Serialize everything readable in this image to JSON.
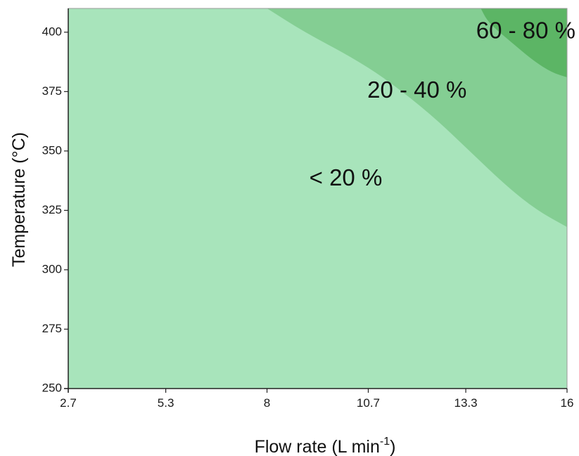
{
  "chart_data": {
    "type": "contour",
    "title": "",
    "xlabel": "Flow rate (L min",
    "xlabel_superscript": "-1",
    "xlabel_suffix": ")",
    "ylabel": "Temperature (°C)",
    "x_ticks": [
      "2.7",
      "5.3",
      "8",
      "10.7",
      "13.3",
      "16"
    ],
    "x_tick_values": [
      2.7,
      5.3,
      8,
      10.7,
      13.3,
      16
    ],
    "y_ticks": [
      "250",
      "275",
      "300",
      "325",
      "350",
      "375",
      "400"
    ],
    "y_tick_values": [
      250,
      275,
      300,
      325,
      350,
      375,
      400
    ],
    "xlim": [
      2.7,
      16
    ],
    "ylim": [
      250,
      410
    ],
    "grid": false,
    "regions": [
      {
        "label": "< 20 %",
        "color": "#a8e4bb",
        "label_x": 10.1,
        "label_y": 338
      },
      {
        "label": "20 - 40 %",
        "color": "#84ce93",
        "label_x": 12.0,
        "label_y": 375,
        "boundary": [
          [
            8.0,
            410
          ],
          [
            9.0,
            400
          ],
          [
            10.2,
            390
          ],
          [
            11.2,
            380
          ],
          [
            12.4,
            365
          ],
          [
            13.4,
            350
          ],
          [
            14.4,
            335
          ],
          [
            15.2,
            325
          ],
          [
            16.0,
            318
          ]
        ]
      },
      {
        "label": "60 - 80 %",
        "color": "#5cb565",
        "label_x": 14.9,
        "label_y": 400,
        "boundary": [
          [
            13.7,
            410
          ],
          [
            13.9,
            404
          ],
          [
            14.5,
            396
          ],
          [
            15.1,
            388
          ],
          [
            15.6,
            383
          ],
          [
            16.0,
            381
          ]
        ]
      }
    ]
  }
}
